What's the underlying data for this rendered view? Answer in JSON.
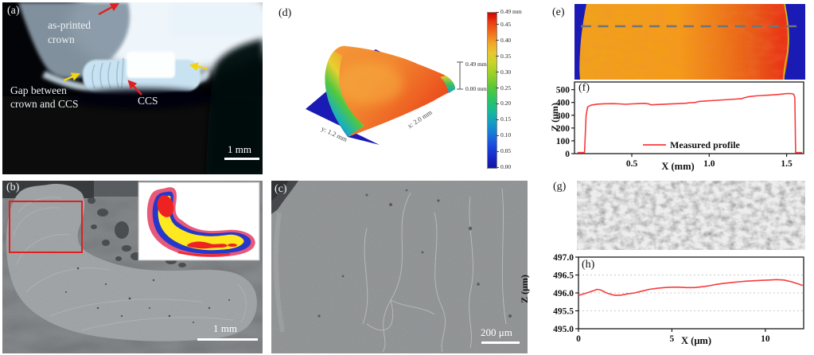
{
  "figure": {
    "panels": {
      "a": {
        "label": "(a)",
        "crown_label_line1": "as-printed",
        "crown_label_line2": "crown",
        "gap_label_line1": "Gap between",
        "gap_label_line2": "crown and CCS",
        "ccs_label": "CCS",
        "scale_bar": "1 mm"
      },
      "b": {
        "label": "(b)",
        "scale_bar": "1 mm"
      },
      "c": {
        "label": "(c)",
        "scale_bar": "200 μm"
      },
      "d": {
        "label": "(d)",
        "z_axis_top": "0.49 mm",
        "z_axis_bottom": "0.00 mm",
        "y_axis_label": "y: 1.2 mm",
        "x_axis_label": "x: 2.0 mm",
        "colorbar": {
          "max": 0.49,
          "ticks": [
            {
              "v": 0.49,
              "t": "0.49 mm"
            },
            {
              "v": 0.45,
              "t": "0.45"
            },
            {
              "v": 0.4,
              "t": "0.40"
            },
            {
              "v": 0.35,
              "t": "0.35"
            },
            {
              "v": 0.3,
              "t": "0.30"
            },
            {
              "v": 0.25,
              "t": "0.25"
            },
            {
              "v": 0.2,
              "t": "0.20"
            },
            {
              "v": 0.15,
              "t": "0.15"
            },
            {
              "v": 0.1,
              "t": "0.10"
            },
            {
              "v": 0.05,
              "t": "0.05"
            },
            {
              "v": 0.0,
              "t": "0.00"
            }
          ]
        }
      },
      "e": {
        "label": "(e)"
      },
      "f": {
        "label": "(f)"
      },
      "g": {
        "label": "(g)"
      },
      "h": {
        "label": "(h)"
      }
    }
  },
  "chart_data": [
    {
      "id": "f",
      "type": "line",
      "panel": "f",
      "title": "",
      "xlabel": "X (mm)",
      "ylabel": "Z (μm)",
      "xlim": [
        0.13,
        1.61
      ],
      "ylim": [
        0,
        560
      ],
      "grid": false,
      "xticks": [
        {
          "v": 0.5,
          "t": "0.5"
        },
        {
          "v": 1.0,
          "t": "1.0"
        },
        {
          "v": 1.5,
          "t": "1.5"
        }
      ],
      "yticks": [
        {
          "v": 0,
          "t": "0"
        },
        {
          "v": 100,
          "t": "100"
        },
        {
          "v": 200,
          "t": "200"
        },
        {
          "v": 300,
          "t": "300"
        },
        {
          "v": 400,
          "t": "400"
        },
        {
          "v": 500,
          "t": "500"
        }
      ],
      "legend": {
        "label": "Measured profile"
      },
      "series": [
        {
          "name": "Measured profile",
          "color": "#f73b3b",
          "points": [
            [
              0.15,
              8
            ],
            [
              0.195,
              8
            ],
            [
              0.205,
              300
            ],
            [
              0.215,
              365
            ],
            [
              0.24,
              380
            ],
            [
              0.28,
              387
            ],
            [
              0.33,
              390
            ],
            [
              0.38,
              391
            ],
            [
              0.42,
              389
            ],
            [
              0.46,
              386
            ],
            [
              0.5,
              389
            ],
            [
              0.54,
              391
            ],
            [
              0.58,
              393
            ],
            [
              0.61,
              388
            ],
            [
              0.625,
              381
            ],
            [
              0.65,
              383
            ],
            [
              0.7,
              385
            ],
            [
              0.75,
              388
            ],
            [
              0.8,
              391
            ],
            [
              0.85,
              394
            ],
            [
              0.88,
              398
            ],
            [
              0.91,
              400
            ],
            [
              0.93,
              407
            ],
            [
              0.97,
              411
            ],
            [
              1.01,
              414
            ],
            [
              1.05,
              417
            ],
            [
              1.09,
              420
            ],
            [
              1.13,
              423
            ],
            [
              1.17,
              426
            ],
            [
              1.21,
              430
            ],
            [
              1.23,
              438
            ],
            [
              1.26,
              446
            ],
            [
              1.3,
              451
            ],
            [
              1.34,
              454
            ],
            [
              1.38,
              457
            ],
            [
              1.42,
              460
            ],
            [
              1.46,
              464
            ],
            [
              1.5,
              469
            ],
            [
              1.53,
              470
            ],
            [
              1.545,
              464
            ],
            [
              1.553,
              440
            ],
            [
              1.558,
              8
            ],
            [
              1.6,
              8
            ]
          ]
        }
      ]
    },
    {
      "id": "h",
      "type": "line",
      "panel": "h",
      "title": "",
      "xlabel": "X (μm)",
      "ylabel": "Z (μm)",
      "xlim": [
        0,
        12.05
      ],
      "ylim": [
        495.0,
        497.0
      ],
      "grid": true,
      "gridlines": [
        495.5,
        496.0,
        496.5
      ],
      "xticks": [
        {
          "v": 0,
          "t": "0"
        },
        {
          "v": 5,
          "t": "5"
        },
        {
          "v": 10,
          "t": "10"
        }
      ],
      "yticks": [
        {
          "v": 495.0,
          "t": "495.0"
        },
        {
          "v": 495.5,
          "t": "495.5"
        },
        {
          "v": 496.0,
          "t": "496.0"
        },
        {
          "v": 496.5,
          "t": "496.5"
        },
        {
          "v": 497.0,
          "t": "497.0"
        }
      ],
      "series": [
        {
          "name": "Measured profile",
          "color": "#f73b3b",
          "points": [
            [
              0,
              495.93
            ],
            [
              0.4,
              495.99
            ],
            [
              0.8,
              496.06
            ],
            [
              1.0,
              496.1
            ],
            [
              1.2,
              496.08
            ],
            [
              1.5,
              496.0
            ],
            [
              1.8,
              495.95
            ],
            [
              2.0,
              495.93
            ],
            [
              2.3,
              495.94
            ],
            [
              2.6,
              495.97
            ],
            [
              3.0,
              496.0
            ],
            [
              3.4,
              496.05
            ],
            [
              3.8,
              496.1
            ],
            [
              4.2,
              496.13
            ],
            [
              4.6,
              496.15
            ],
            [
              5.0,
              496.16
            ],
            [
              5.4,
              496.16
            ],
            [
              5.8,
              496.15
            ],
            [
              6.2,
              496.15
            ],
            [
              6.6,
              496.17
            ],
            [
              7.0,
              496.2
            ],
            [
              7.4,
              496.24
            ],
            [
              7.8,
              496.27
            ],
            [
              8.2,
              496.29
            ],
            [
              8.6,
              496.31
            ],
            [
              9.0,
              496.33
            ],
            [
              9.4,
              496.34
            ],
            [
              9.8,
              496.35
            ],
            [
              10.2,
              496.36
            ],
            [
              10.6,
              496.37
            ],
            [
              11.0,
              496.36
            ],
            [
              11.4,
              496.31
            ],
            [
              11.7,
              496.26
            ],
            [
              12.0,
              496.21
            ]
          ]
        }
      ]
    }
  ],
  "colors": {
    "red-accent": "#e02020",
    "yellow-accent": "#f2d410",
    "profile-line": "#f73b3b",
    "map-orange": "#f59b1c",
    "map-red": "#e93016",
    "map-blue": "#1a1ab4",
    "inset-yellow": "#ffe820",
    "inset-blue": "#2438cc",
    "inset-red": "#ee2222",
    "inset-pink": "#e85878",
    "dash-gray": "#6f7578"
  }
}
